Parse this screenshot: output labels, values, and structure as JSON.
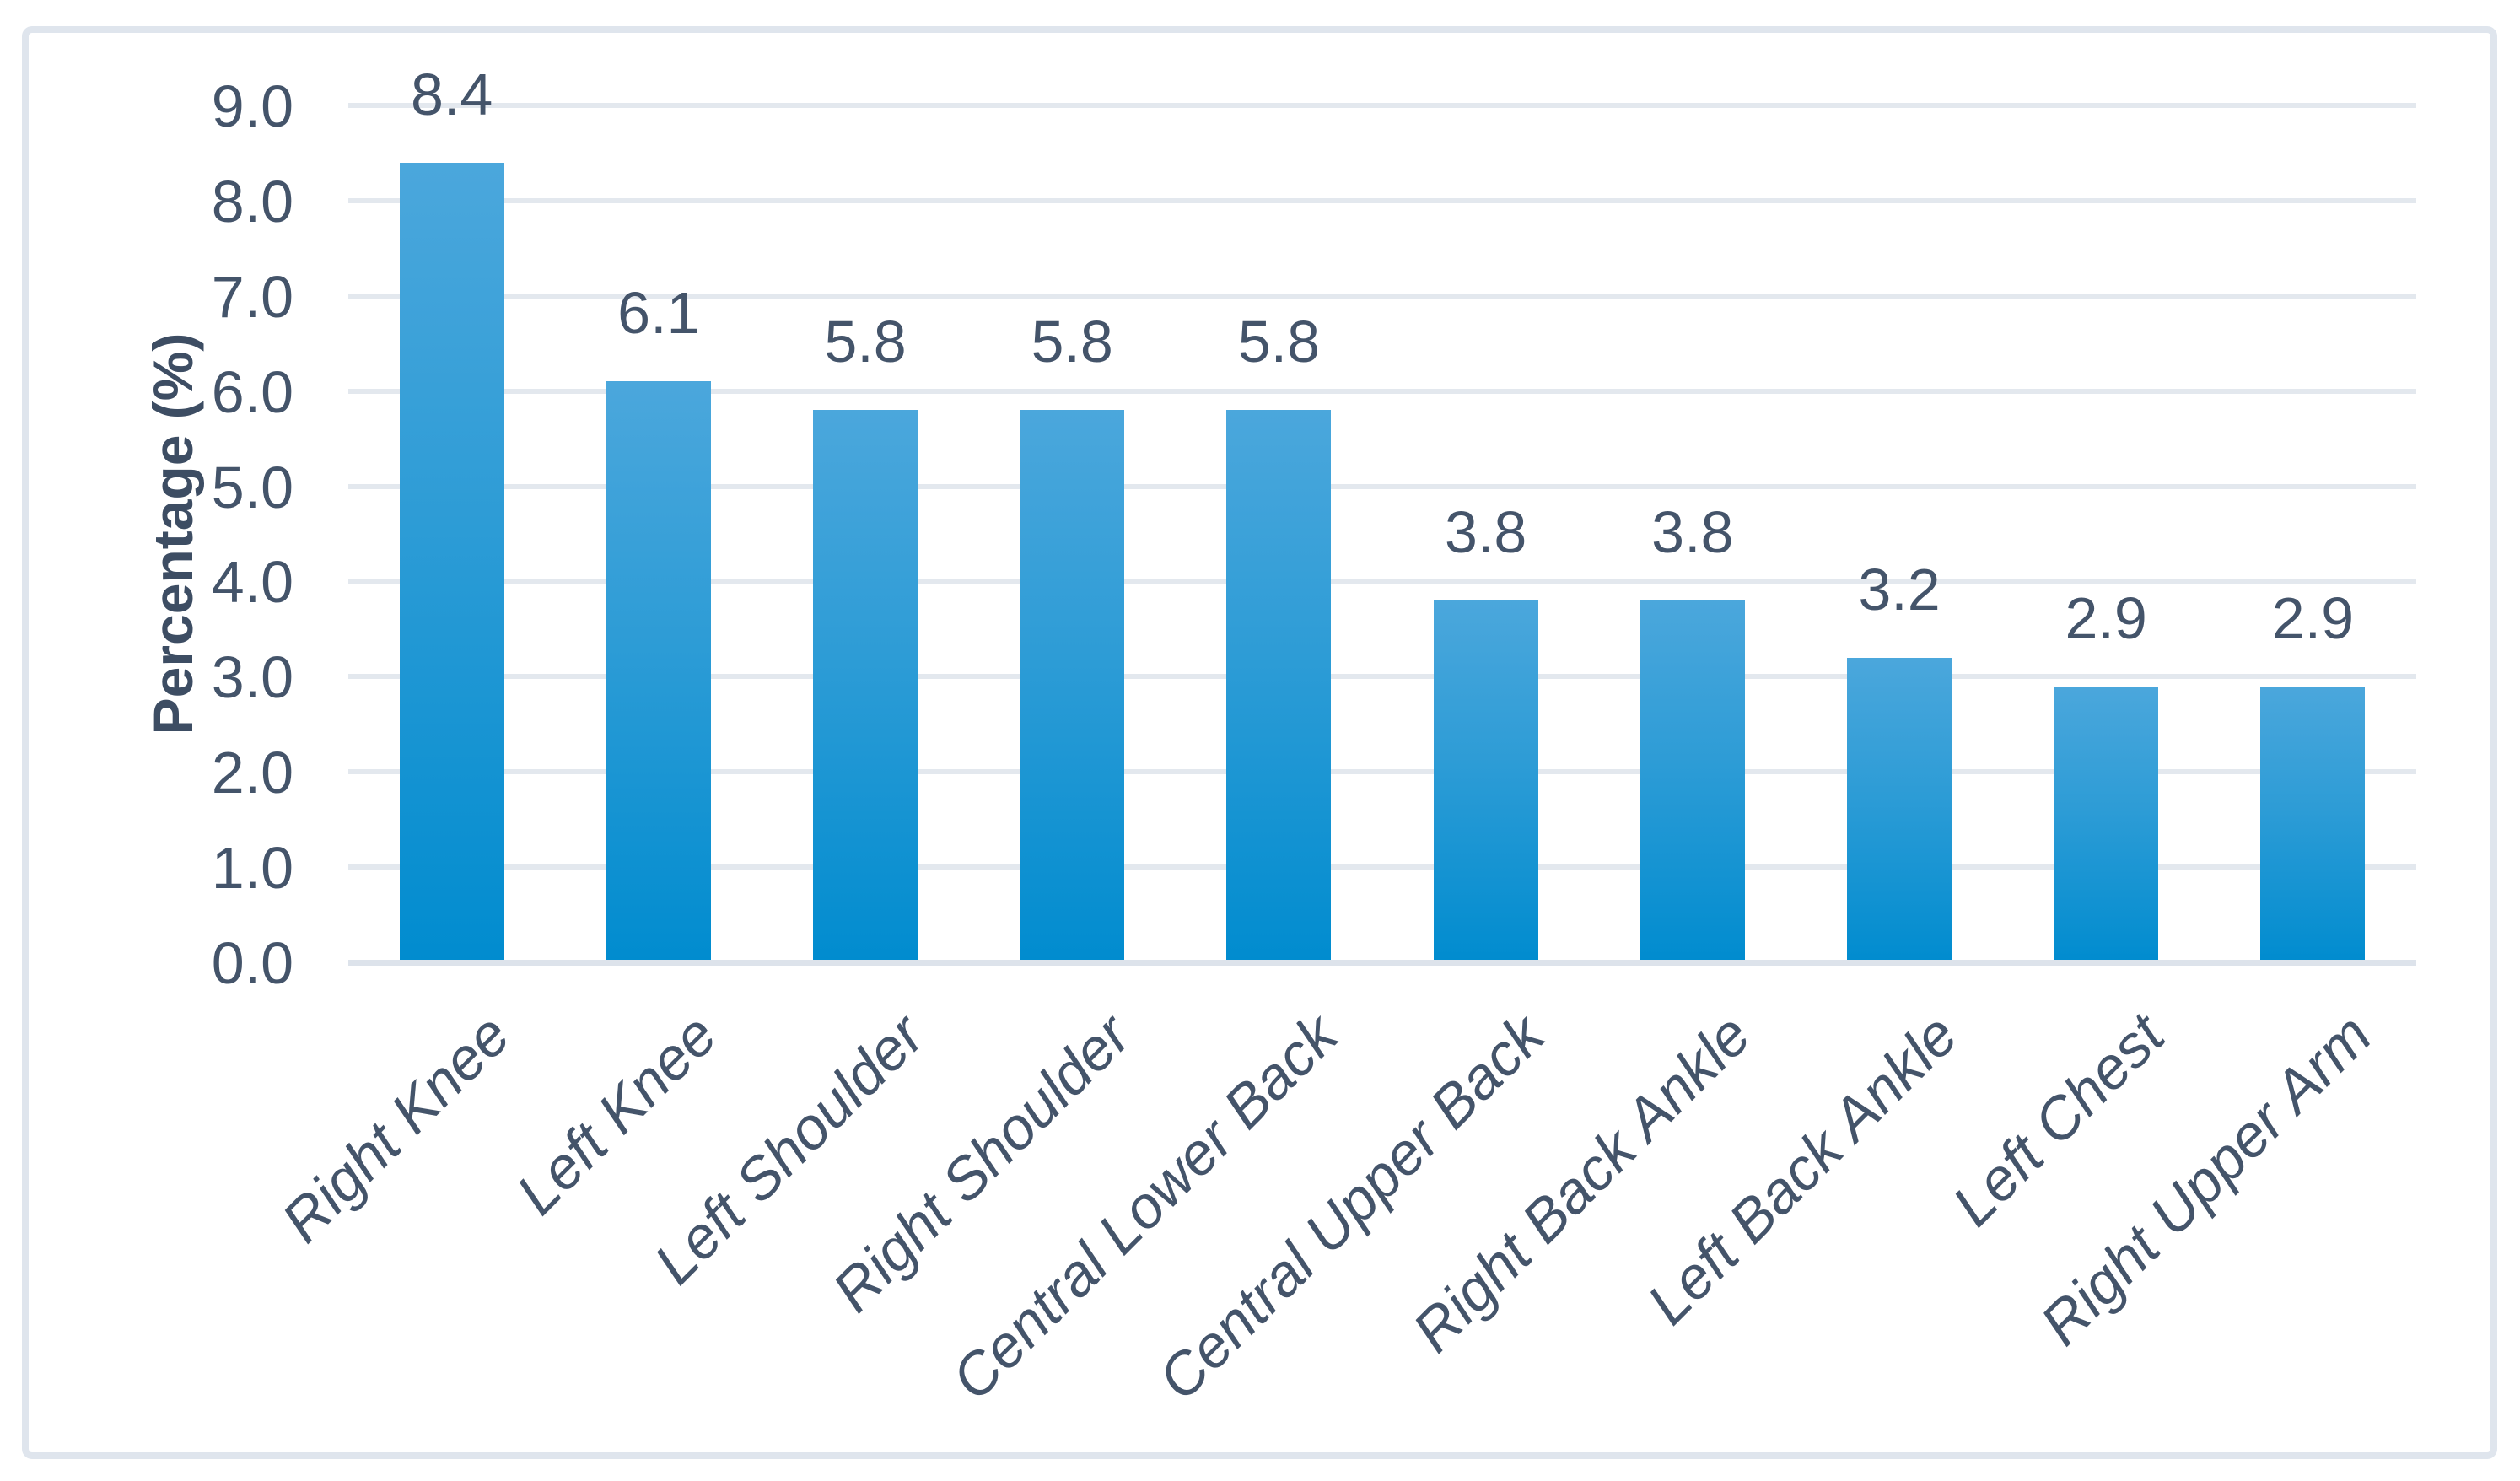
{
  "chart_data": {
    "type": "bar",
    "categories": [
      "Right Knee",
      "Left Knee",
      "Left Shoulder",
      "Right Shoulder",
      "Central Lower Back",
      "Central Upper Back",
      "Right Back Ankle",
      "Left Back Ankle",
      "Left Chest",
      "Right Upper Arm"
    ],
    "values": [
      8.4,
      6.1,
      5.8,
      5.8,
      5.8,
      3.8,
      3.8,
      3.2,
      2.9,
      2.9
    ],
    "data_labels": [
      "8.4",
      "6.1",
      "5.8",
      "5.8",
      "5.8",
      "3.8",
      "3.8",
      "3.2",
      "2.9",
      "2.9"
    ],
    "title": "",
    "xlabel": "",
    "ylabel": "Percentage (%)",
    "ylim": [
      0,
      9
    ],
    "ytick_step": 1.0,
    "ytick_labels": [
      "0.0",
      "1.0",
      "2.0",
      "3.0",
      "4.0",
      "5.0",
      "6.0",
      "7.0",
      "8.0",
      "9.0"
    ],
    "grid": true,
    "legend": false,
    "legend_position": "none",
    "x_label_rotation_deg": 45,
    "bar_gradient_top": "#4BA7DC",
    "bar_gradient_bottom": "#018CCF"
  },
  "colors": {
    "text": "#44546A",
    "gridline": "#E3E8EE",
    "axis_line": "#DDE3EB",
    "frame_border": "#DFE5ED",
    "background": "#FFFFFF"
  }
}
